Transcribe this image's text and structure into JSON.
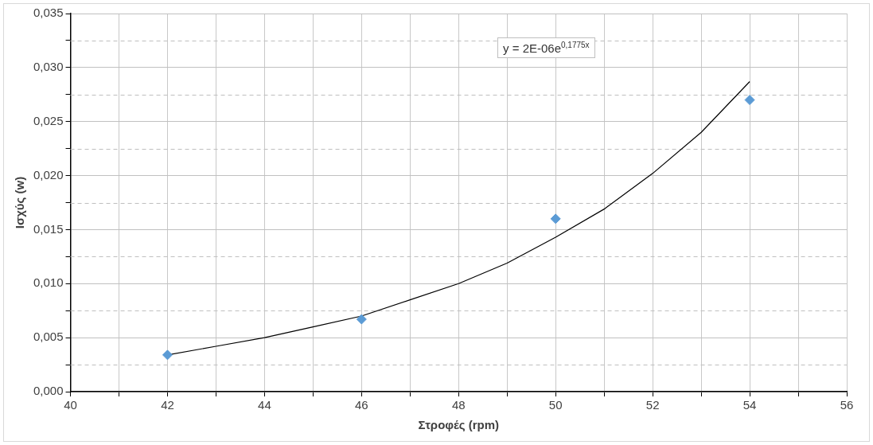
{
  "chart_data": {
    "type": "scatter",
    "xlabel": "Στροφές (rpm)",
    "ylabel": "Ισχύς (w)",
    "xlim": [
      40,
      56
    ],
    "xticks": [
      40,
      {
        "value": 41,
        "label": null
      },
      42,
      {
        "value": 43,
        "label": null
      },
      44,
      {
        "value": 45,
        "label": null
      },
      46,
      {
        "value": 47,
        "label": null
      },
      48,
      {
        "value": 49,
        "label": null
      },
      50,
      {
        "value": 51,
        "label": null
      },
      52,
      {
        "value": 53,
        "label": null
      },
      54,
      {
        "value": 55,
        "label": null
      },
      56
    ],
    "ylim": [
      0,
      0.035
    ],
    "yticks": [
      {
        "value": 0,
        "label": "0,000"
      },
      {
        "value": 0.0025,
        "label": null
      },
      {
        "value": 0.005,
        "label": "0,005"
      },
      {
        "value": 0.0075,
        "label": null
      },
      {
        "value": 0.01,
        "label": "0,010"
      },
      {
        "value": 0.0125,
        "label": null
      },
      {
        "value": 0.015,
        "label": "0,015"
      },
      {
        "value": 0.0175,
        "label": null
      },
      {
        "value": 0.02,
        "label": "0,020"
      },
      {
        "value": 0.0225,
        "label": null
      },
      {
        "value": 0.025,
        "label": "0,025"
      },
      {
        "value": 0.0275,
        "label": null
      },
      {
        "value": 0.03,
        "label": "0,030"
      },
      {
        "value": 0.0325,
        "label": null
      },
      {
        "value": 0.035,
        "label": "0,035"
      }
    ],
    "grid": true,
    "legend": false,
    "annotations": [
      "y = 2E-06e$^{0,1775x}$"
    ],
    "series": [
      {
        "marker": "diamond",
        "color": "#5b9bd5",
        "x": [
          42,
          46,
          50,
          54
        ],
        "values": [
          0.0034,
          0.0067,
          0.016,
          0.027
        ]
      },
      {
        "type": "line",
        "marker": "none",
        "line_style": "solid",
        "color": "#000000",
        "x": [
          42,
          43,
          44,
          45,
          46,
          47,
          48,
          49,
          50,
          51,
          52,
          53,
          54
        ],
        "values": [
          0.0034,
          0.0042,
          0.005,
          0.006,
          0.007,
          0.0085,
          0.01,
          0.0119,
          0.0143,
          0.0169,
          0.0202,
          0.024,
          0.0287
        ]
      }
    ]
  }
}
